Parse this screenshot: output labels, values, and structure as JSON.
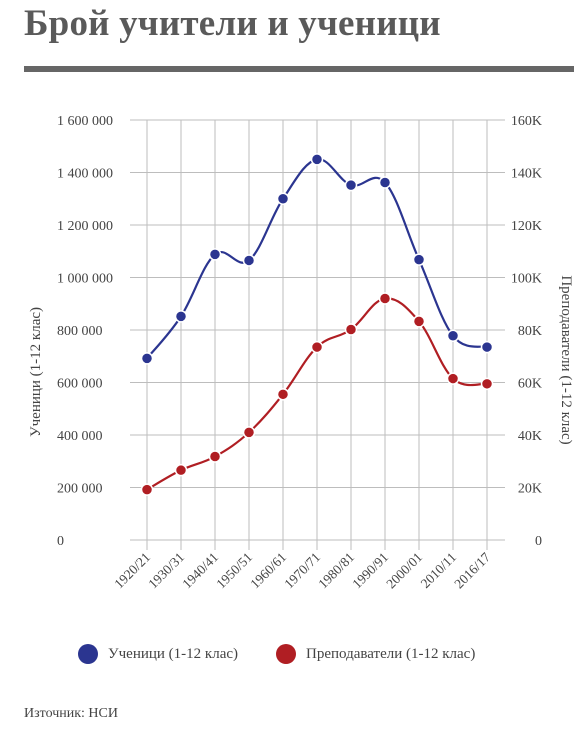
{
  "title": "Брой учители и ученици",
  "source": "Източник: НСИ",
  "colors": {
    "students": "#2b3590",
    "teachers": "#b01e23",
    "grid": "#bdbdbd",
    "rule": "#666666"
  },
  "chart_data": {
    "type": "line",
    "categories": [
      "1920/21",
      "1930/31",
      "1940/41",
      "1950/51",
      "1960/61",
      "1970/71",
      "1980/81",
      "1990/91",
      "2000/01",
      "2010/11",
      "2016/17"
    ],
    "y_left": {
      "label": "Ученици (1-12 клас)",
      "ticks": [
        "0",
        "200 000",
        "400 000",
        "600 000",
        "800 000",
        "1 000 000",
        "1 200 000",
        "1 400 000",
        "1 600 000"
      ],
      "ylim": [
        0,
        1600000
      ]
    },
    "y_right": {
      "label": "Преподаватели (1-12 клас)",
      "ticks": [
        "0",
        "20K",
        "40K",
        "60K",
        "80K",
        "100K",
        "120K",
        "140K",
        "160K"
      ],
      "ylim": [
        0,
        160000
      ]
    },
    "series": [
      {
        "name": "Ученици (1-12 клас)",
        "axis": "left",
        "values": [
          692000,
          852000,
          1088000,
          1065000,
          1300000,
          1450000,
          1352000,
          1362000,
          1068000,
          778000,
          735000
        ]
      },
      {
        "name": "Преподаватели (1-12 клас)",
        "axis": "right",
        "values": [
          19200,
          26600,
          31800,
          41000,
          55500,
          73500,
          80200,
          92000,
          83300,
          61500,
          59500
        ]
      }
    ],
    "legend": "bottom",
    "grid": true
  }
}
